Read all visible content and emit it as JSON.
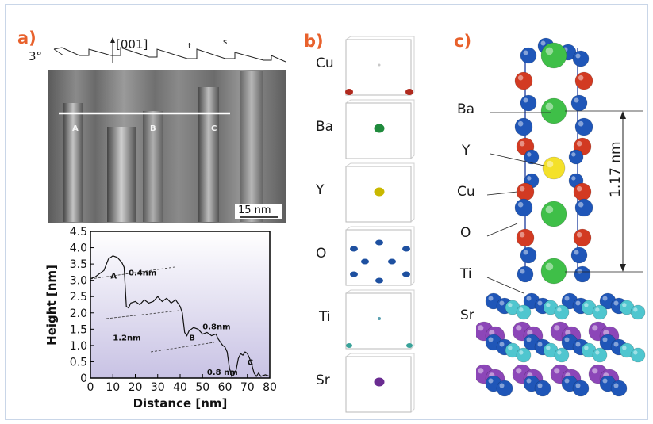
{
  "panels": {
    "a": {
      "label": "a)",
      "angle_label": "3°",
      "direction_label": "[001]",
      "profile_marks": [
        "A",
        "B",
        "C"
      ],
      "scale_bar": "15 nm",
      "t_label": "t",
      "s_label": "s"
    },
    "b": {
      "label": "b)",
      "layers": [
        "Cu",
        "Ba",
        "Y",
        "O",
        "Ti",
        "Sr"
      ],
      "dot_colors": [
        "#c8c8c8",
        "#1f8a3c",
        "#c9b800",
        "#1e50a0",
        "#9ab9b6",
        "#6a2c91"
      ]
    },
    "c": {
      "label": "c)",
      "labels": [
        "Ba",
        "Y",
        "Cu",
        "O",
        "Ti",
        "Sr"
      ],
      "dimension": "1.17 nm"
    }
  },
  "chart_data": {
    "type": "line",
    "xlabel": "Distance [nm]",
    "ylabel": "Height [nm]",
    "xlim": [
      0,
      80
    ],
    "ylim": [
      0,
      4.5
    ],
    "xticks": [
      "0",
      "10",
      "20",
      "30",
      "40",
      "50",
      "60",
      "70",
      "80"
    ],
    "yticks": [
      "0",
      "0.5",
      "1.0",
      "1.5",
      "2.0",
      "2.5",
      "3.0",
      "3.5",
      "4.0",
      "4.5"
    ],
    "series": [
      {
        "x": [
          0,
          2,
          4,
          6,
          8,
          10,
          12,
          14,
          15,
          16,
          17,
          18,
          20,
          22,
          24,
          26,
          28,
          30,
          32,
          34,
          36,
          38,
          40,
          41,
          42,
          43,
          44,
          46,
          48,
          50,
          52,
          54,
          56,
          57,
          58,
          59,
          60,
          61,
          62,
          63,
          64,
          65,
          66,
          67,
          68,
          69,
          70,
          71,
          72,
          73,
          74,
          75,
          76,
          78,
          80
        ],
        "y": [
          3.05,
          3.1,
          3.2,
          3.3,
          3.65,
          3.75,
          3.7,
          3.55,
          3.4,
          2.2,
          2.15,
          2.3,
          2.35,
          2.25,
          2.4,
          2.3,
          2.35,
          2.5,
          2.35,
          2.45,
          2.3,
          2.4,
          2.2,
          2.0,
          1.4,
          1.3,
          1.45,
          1.55,
          1.5,
          1.35,
          1.4,
          1.3,
          1.35,
          1.2,
          1.1,
          1.0,
          0.95,
          0.8,
          0.3,
          0.05,
          0.1,
          0.25,
          0.6,
          0.75,
          0.7,
          0.8,
          0.75,
          0.6,
          0.4,
          0.15,
          0.05,
          0.15,
          0.05,
          0.1,
          0.05
        ]
      }
    ],
    "annotations": [
      {
        "text": "A",
        "x": 9,
        "y": 3.05
      },
      {
        "text": "0.4nm",
        "x": 17,
        "y": 3.15
      },
      {
        "text": "B",
        "x": 44,
        "y": 1.15
      },
      {
        "text": "0.8nm",
        "x": 50,
        "y": 1.5
      },
      {
        "text": "1.2nm",
        "x": 10,
        "y": 1.15
      },
      {
        "text": "C",
        "x": 70,
        "y": 0.4
      },
      {
        "text": "0.8 nm",
        "x": 52,
        "y": 0.1
      }
    ],
    "grid": false
  }
}
